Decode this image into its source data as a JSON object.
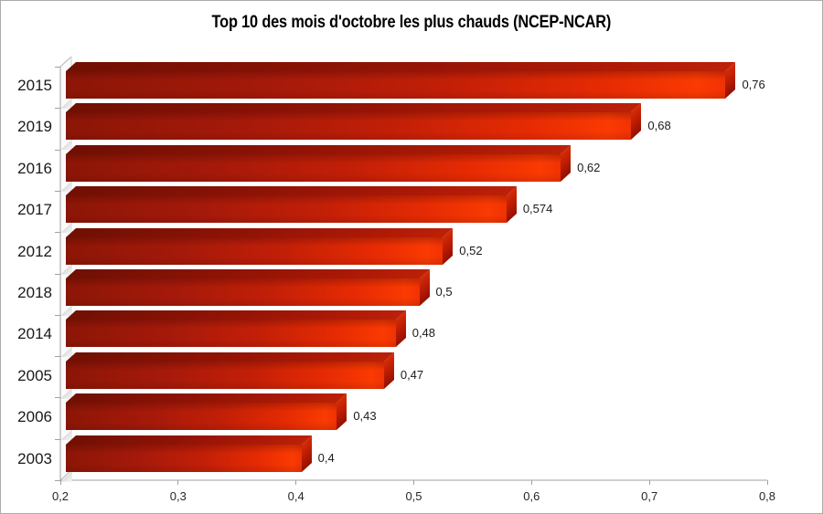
{
  "chart_data": {
    "type": "bar",
    "orientation": "horizontal",
    "style": "excel-3d-bar",
    "title": "Top 10 des mois d'octobre les plus chauds (NCEP-NCAR)",
    "categories": [
      "2015",
      "2019",
      "2016",
      "2017",
      "2012",
      "2018",
      "2014",
      "2005",
      "2006",
      "2003"
    ],
    "values": [
      0.76,
      0.68,
      0.62,
      0.574,
      0.52,
      0.5,
      0.48,
      0.47,
      0.43,
      0.4
    ],
    "value_labels": [
      "0,76",
      "0,68",
      "0,62",
      "0,574",
      "0,52",
      "0,5",
      "0,48",
      "0,47",
      "0,43",
      "0,4"
    ],
    "xlabel": "",
    "ylabel": "",
    "xlim": [
      0.2,
      0.8
    ],
    "x_ticks": [
      0.2,
      0.3,
      0.4,
      0.5,
      0.6,
      0.7,
      0.8
    ],
    "x_tick_labels": [
      "0,2",
      "0,3",
      "0,4",
      "0,5",
      "0,6",
      "0,7",
      "0,8"
    ],
    "grid": false,
    "legend": false,
    "colors": {
      "bar_dark": "#8C1606",
      "bar_mid": "#C21F07",
      "bar_bright": "#FA3A02",
      "bar_top_face": "#8F1305",
      "bar_end_cap": "#BE1D03",
      "axis_line": "#A0A0A0",
      "wall_back_line": "#D0D0D0",
      "text": "#1A1A1A",
      "background": "#FFFFFF",
      "frame_border": "#ABABAB"
    }
  }
}
